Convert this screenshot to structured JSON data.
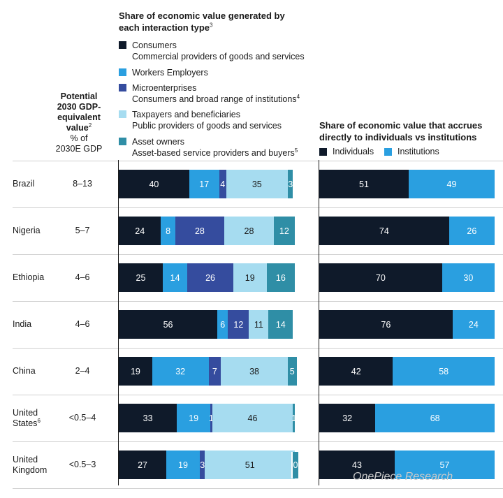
{
  "colors": {
    "consumers": "#0f1a2a",
    "workers": "#2a9fe0",
    "micro": "#354c9e",
    "taxpayers": "#a6dcf0",
    "asset": "#2f8ea6",
    "individuals": "#0f1a2a",
    "institutions": "#2a9fe0"
  },
  "left_title": {
    "line1": "Share of economic value generated by",
    "line2": "each interaction type",
    "sup": "3"
  },
  "legend": [
    {
      "key": "consumers",
      "line1": "Consumers",
      "line2": "Commercial providers of goods and services",
      "sup": ""
    },
    {
      "key": "workers",
      "line1": "Workers  Employers",
      "line2": "",
      "sup": ""
    },
    {
      "key": "micro",
      "line1": "Microenterprises",
      "line2": "Consumers and broad range of institutions",
      "sup": "4"
    },
    {
      "key": "taxpayers",
      "line1": "Taxpayers and beneficiaries",
      "line2": "Public providers of goods and services",
      "sup": ""
    },
    {
      "key": "asset",
      "line1": "Asset owners",
      "line2": "Asset-based service providers and buyers",
      "sup": "5"
    }
  ],
  "gdp_header": {
    "line1": "Potential",
    "line2": "2030 GDP-",
    "line3": "equivalent",
    "line4": "value",
    "sup": "2",
    "line5": "% of",
    "line6": "2030E GDP"
  },
  "right_title": {
    "line1": "Share of economic value that accrues",
    "line2": "directly to individuals vs institutions"
  },
  "right_legend": {
    "individuals": "Individuals",
    "institutions": "Institutions"
  },
  "watermark": "OnePiece Research",
  "chart_data": [
    {
      "type": "bar",
      "orientation": "horizontal-stacked",
      "title": "Share of economic value generated by each interaction type",
      "categories": [
        "Brazil",
        "Nigeria",
        "Ethiopia",
        "India",
        "China",
        "United States",
        "United Kingdom"
      ],
      "category_footnotes": [
        "",
        "",
        "",
        "",
        "",
        "6",
        ""
      ],
      "gdp_ranges": [
        "8–13",
        "5–7",
        "4–6",
        "4–6",
        "2–4",
        "<0.5–4",
        "<0.5–3"
      ],
      "series": [
        {
          "name": "Consumers",
          "key": "consumers",
          "values": [
            40,
            24,
            25,
            56,
            19,
            33,
            27
          ]
        },
        {
          "name": "Workers  Employers",
          "key": "workers",
          "values": [
            17,
            8,
            14,
            6,
            32,
            19,
            19
          ]
        },
        {
          "name": "Microenterprises",
          "key": "micro",
          "values": [
            4,
            28,
            26,
            12,
            7,
            1,
            3
          ]
        },
        {
          "name": "Taxpayers and beneficiaries",
          "key": "taxpayers",
          "values": [
            35,
            28,
            19,
            11,
            38,
            46,
            51
          ]
        },
        {
          "name": "Asset owners",
          "key": "asset",
          "values": [
            3,
            12,
            16,
            14,
            5,
            1,
            0
          ]
        }
      ],
      "xlim": [
        0,
        100
      ]
    },
    {
      "type": "bar",
      "orientation": "horizontal-stacked",
      "title": "Share of economic value that accrues directly to individuals vs institutions",
      "categories": [
        "Brazil",
        "Nigeria",
        "Ethiopia",
        "India",
        "China",
        "United States",
        "United Kingdom"
      ],
      "series": [
        {
          "name": "Individuals",
          "key": "individuals",
          "values": [
            51,
            74,
            70,
            76,
            42,
            32,
            43
          ]
        },
        {
          "name": "Institutions",
          "key": "institutions",
          "values": [
            49,
            26,
            30,
            24,
            58,
            68,
            57
          ]
        }
      ],
      "xlim": [
        0,
        100
      ]
    }
  ]
}
